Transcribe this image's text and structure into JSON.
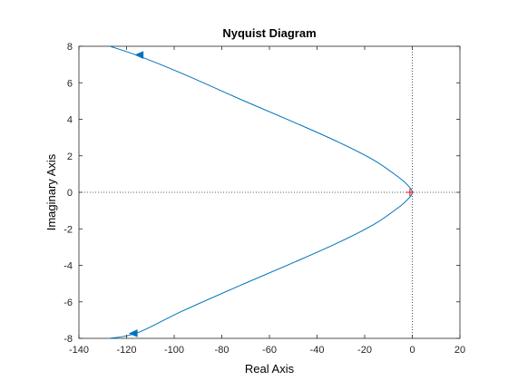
{
  "chart_data": {
    "type": "line",
    "title": "Nyquist Diagram",
    "xlabel": "Real Axis",
    "ylabel": "Imaginary Axis",
    "xlim": [
      -140,
      20
    ],
    "ylim": [
      -8,
      8
    ],
    "xticks": [
      -140,
      -120,
      -100,
      -80,
      -60,
      -40,
      -20,
      0,
      20
    ],
    "yticks": [
      -8,
      -6,
      -4,
      -2,
      0,
      2,
      4,
      6,
      8
    ],
    "xtick_labels": [
      "-140",
      "-120",
      "-100",
      "-80",
      "-60",
      "-40",
      "-20",
      "0",
      "20"
    ],
    "ytick_labels": [
      "-8",
      "-6",
      "-4",
      "-2",
      "0",
      "2",
      "4",
      "6",
      "8"
    ],
    "grid": false,
    "zero_lines": "dotted",
    "critical_point": {
      "x": -1,
      "y": 0,
      "marker": "+",
      "color": "#ff0000"
    },
    "series": [
      {
        "color": "#0072bd",
        "x": [
          -127,
          -115.5,
          -96.5,
          -70.5,
          -49,
          -31,
          -16,
          -6,
          -2,
          0,
          -2,
          -6,
          -16,
          -31,
          -49,
          -70.5,
          -96.5,
          -115.5,
          -127
        ],
        "y": [
          8,
          7.5,
          6.5,
          5,
          3.8,
          2.75,
          1.75,
          0.85,
          0.4,
          0,
          -0.4,
          -0.85,
          -1.75,
          -2.75,
          -3.8,
          -5,
          -6.5,
          -7.7,
          -8
        ]
      }
    ],
    "arrows": [
      {
        "x": -114.5,
        "y": 7.5,
        "direction": "toward-negative-x"
      },
      {
        "x": -117,
        "y": -7.7,
        "direction": "toward-negative-x"
      }
    ]
  }
}
